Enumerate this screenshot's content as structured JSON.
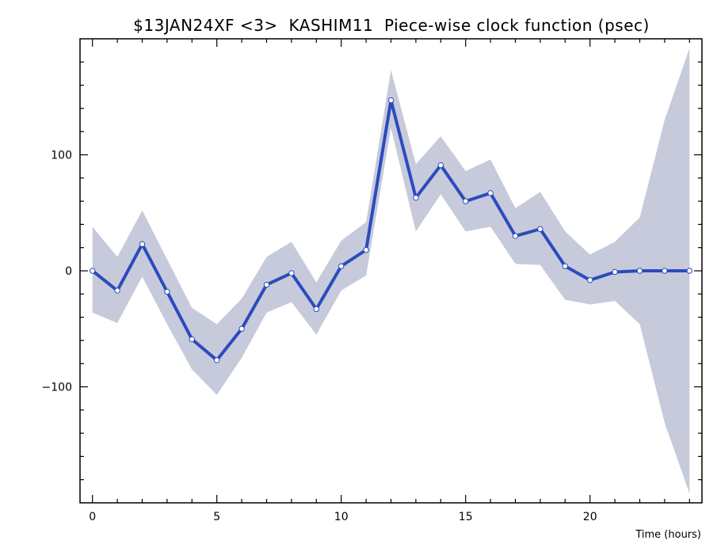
{
  "chart_data": {
    "type": "line",
    "title": "$13JAN24XF <3>  KASHIM11  Piece-wise clock function (psec)",
    "xlabel": "Time (hours)",
    "ylabel": "",
    "xlim": [
      -0.5,
      24.5
    ],
    "ylim": [
      -200,
      200
    ],
    "x_ticks": [
      0,
      5,
      10,
      15,
      20
    ],
    "y_ticks": [
      -100,
      0,
      100
    ],
    "x_tick_labels": [
      "0",
      "5",
      "10",
      "15",
      "20"
    ],
    "y_tick_labels": [
      "−100",
      "0",
      "100"
    ],
    "grid": false,
    "colors": {
      "line": "#2b4bbd",
      "band": "#c6cadb",
      "marker_fill": "#ffffff",
      "marker_stroke": "#2b4bbd"
    },
    "series": [
      {
        "x": [
          0,
          1,
          2,
          3,
          4,
          5,
          6,
          7,
          8,
          9,
          10,
          11,
          12,
          13,
          14,
          15,
          16,
          17,
          18,
          19,
          20,
          21,
          22,
          23,
          24
        ],
        "values": [
          0,
          -17,
          23,
          -18,
          -59,
          -77,
          -50,
          -12,
          -2,
          -33,
          4,
          18,
          147,
          63,
          91,
          60,
          67,
          30,
          36,
          4,
          -8,
          -1,
          0,
          0,
          0
        ],
        "upper": [
          38,
          12,
          52,
          10,
          -32,
          -46,
          -24,
          12,
          25,
          -10,
          26,
          42,
          173,
          92,
          116,
          86,
          96,
          54,
          68,
          34,
          14,
          25,
          46,
          130,
          192
        ],
        "lower": [
          -36,
          -45,
          -5,
          -46,
          -85,
          -107,
          -75,
          -36,
          -27,
          -55,
          -17,
          -4,
          123,
          34,
          66,
          34,
          38,
          6,
          5,
          -25,
          -29,
          -26,
          -46,
          -131,
          -192
        ]
      }
    ]
  }
}
